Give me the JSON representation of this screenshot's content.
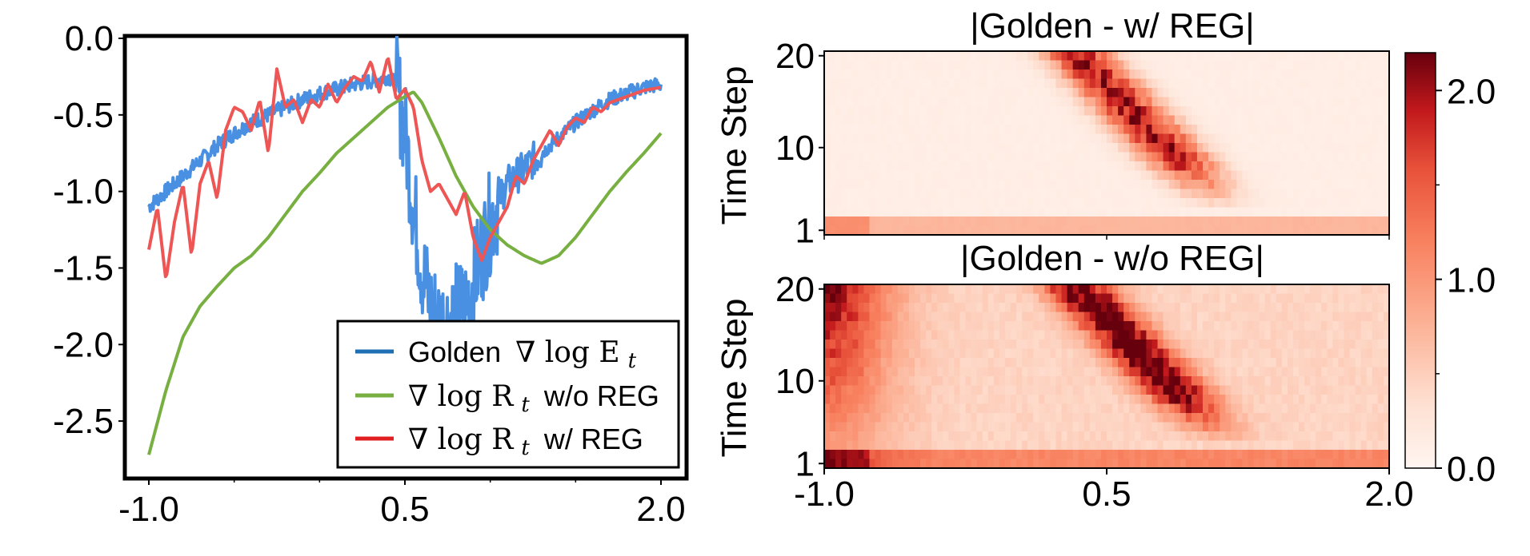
{
  "chart_data": [
    {
      "type": "line",
      "x_ticks": [
        "-1.0",
        "0.5",
        "2.0"
      ],
      "y_ticks": [
        "0.0",
        "-0.5",
        "-1.0",
        "-1.5",
        "-2.0",
        "-2.5"
      ],
      "xlim": [
        -1.0,
        2.0
      ],
      "ylim": [
        -2.75,
        0.0
      ],
      "legend_position": "lower-right",
      "series": [
        {
          "name": "Golden ∇ log E_t",
          "legend_text": "Golden",
          "legend_math": "∇ log E",
          "legend_sub": "t",
          "color": "#4a90e2",
          "noisy": true,
          "x": [
            -1.0,
            -0.9,
            -0.8,
            -0.7,
            -0.6,
            -0.5,
            -0.4,
            -0.3,
            -0.2,
            -0.1,
            0.0,
            0.1,
            0.2,
            0.3,
            0.4,
            0.45,
            0.5,
            0.55,
            0.6,
            0.65,
            0.7,
            0.75,
            0.8,
            0.85,
            0.9,
            0.95,
            1.0,
            1.05,
            1.1,
            1.15,
            1.2,
            1.3,
            1.4,
            1.5,
            1.6,
            1.7,
            1.8,
            1.9,
            2.0
          ],
          "y": [
            -1.1,
            -1.0,
            -0.9,
            -0.8,
            -0.7,
            -0.62,
            -0.55,
            -0.5,
            -0.45,
            -0.4,
            -0.36,
            -0.33,
            -0.3,
            -0.28,
            -0.25,
            -0.3,
            -0.6,
            -1.1,
            -1.5,
            -1.75,
            -1.85,
            -1.85,
            -1.8,
            -1.75,
            -1.6,
            -1.4,
            -1.2,
            -1.05,
            -0.95,
            -0.9,
            -0.85,
            -0.75,
            -0.65,
            -0.55,
            -0.47,
            -0.4,
            -0.36,
            -0.32,
            -0.3
          ]
        },
        {
          "name": "∇ log R_t w/o REG",
          "legend_math": "∇ log R",
          "legend_sub": "t",
          "legend_text": "w/o REG",
          "color": "#77b041",
          "noisy": false,
          "x": [
            -1.0,
            -0.9,
            -0.8,
            -0.7,
            -0.6,
            -0.5,
            -0.4,
            -0.3,
            -0.2,
            -0.1,
            0.0,
            0.1,
            0.2,
            0.3,
            0.4,
            0.5,
            0.55,
            0.6,
            0.7,
            0.8,
            0.9,
            1.0,
            1.1,
            1.2,
            1.3,
            1.4,
            1.5,
            1.6,
            1.7,
            1.8,
            1.9,
            2.0
          ],
          "y": [
            -2.72,
            -2.3,
            -1.95,
            -1.75,
            -1.62,
            -1.5,
            -1.42,
            -1.3,
            -1.15,
            -1.0,
            -0.88,
            -0.75,
            -0.65,
            -0.55,
            -0.45,
            -0.38,
            -0.35,
            -0.42,
            -0.65,
            -0.9,
            -1.1,
            -1.25,
            -1.35,
            -1.42,
            -1.47,
            -1.42,
            -1.3,
            -1.15,
            -1.0,
            -0.87,
            -0.75,
            -0.62
          ]
        },
        {
          "name": "∇ log R_t w/ REG",
          "legend_math": "∇ log R",
          "legend_sub": "t",
          "legend_text": "w/ REG",
          "color": "#ee5555",
          "noisy": false,
          "x": [
            -1.0,
            -0.95,
            -0.9,
            -0.85,
            -0.8,
            -0.75,
            -0.7,
            -0.65,
            -0.6,
            -0.55,
            -0.5,
            -0.45,
            -0.4,
            -0.35,
            -0.3,
            -0.25,
            -0.2,
            -0.15,
            -0.1,
            -0.05,
            0.0,
            0.05,
            0.1,
            0.15,
            0.2,
            0.25,
            0.3,
            0.35,
            0.4,
            0.45,
            0.5,
            0.55,
            0.6,
            0.65,
            0.7,
            0.75,
            0.8,
            0.85,
            0.9,
            0.95,
            1.0,
            1.05,
            1.1,
            1.15,
            1.2,
            1.25,
            1.3,
            1.35,
            1.4,
            1.45,
            1.5,
            1.55,
            1.6,
            1.65,
            1.7,
            1.75,
            1.8,
            1.85,
            1.9,
            1.95,
            2.0
          ],
          "y": [
            -1.38,
            -1.1,
            -1.58,
            -1.2,
            -0.95,
            -1.42,
            -0.95,
            -0.8,
            -1.05,
            -0.6,
            -0.45,
            -0.48,
            -0.6,
            -0.4,
            -0.75,
            -0.2,
            -0.45,
            -0.4,
            -0.55,
            -0.4,
            -0.45,
            -0.3,
            -0.42,
            -0.32,
            -0.25,
            -0.28,
            -0.15,
            -0.35,
            -0.12,
            -0.4,
            -0.33,
            -0.45,
            -0.8,
            -1.0,
            -0.95,
            -1.05,
            -1.15,
            -1.0,
            -1.3,
            -1.45,
            -1.3,
            -1.2,
            -1.1,
            -0.9,
            -0.95,
            -0.8,
            -0.7,
            -0.6,
            -0.7,
            -0.58,
            -0.52,
            -0.55,
            -0.45,
            -0.48,
            -0.42,
            -0.4,
            -0.38,
            -0.36,
            -0.34,
            -0.33,
            -0.32
          ]
        }
      ]
    },
    {
      "type": "heatmap",
      "title": "|Golden - w/ REG|",
      "ylabel": "Time Step",
      "x_ticks": [
        "-1.0",
        "0.5",
        "2.0"
      ],
      "y_ticks": [
        "20",
        "10",
        "1"
      ],
      "xlim": [
        -1.0,
        2.0
      ],
      "ylim": [
        1,
        20
      ],
      "colormap": "Reds",
      "features": [
        {
          "kind": "diagonal_band",
          "x_at_t20": 0.35,
          "x_at_t5": 1.05,
          "peak": 1.9,
          "width": 0.18
        },
        {
          "kind": "bottom_row",
          "t_max": 2,
          "value": 0.6
        },
        {
          "kind": "background",
          "value": 0.12
        }
      ]
    },
    {
      "type": "heatmap",
      "title": "|Golden - w/o REG|",
      "ylabel": "Time Step",
      "x_ticks": [
        "-1.0",
        "0.5",
        "2.0"
      ],
      "y_ticks": [
        "20",
        "10",
        "1"
      ],
      "xlim": [
        -1.0,
        2.0
      ],
      "ylim": [
        1,
        20
      ],
      "colormap": "Reds",
      "features": [
        {
          "kind": "diagonal_band",
          "x_at_t20": 0.35,
          "x_at_t5": 1.05,
          "peak": 2.0,
          "width": 0.18
        },
        {
          "kind": "left_edge",
          "x_center": -1.0,
          "peak": 1.7,
          "width": 0.35
        },
        {
          "kind": "bottom_row",
          "t_max": 2,
          "value": 0.7
        },
        {
          "kind": "background",
          "value": 0.45
        }
      ]
    },
    {
      "type": "colorbar",
      "ticks": [
        "2.0",
        "1.0",
        "0.0"
      ],
      "range": [
        0.0,
        2.2
      ]
    }
  ]
}
